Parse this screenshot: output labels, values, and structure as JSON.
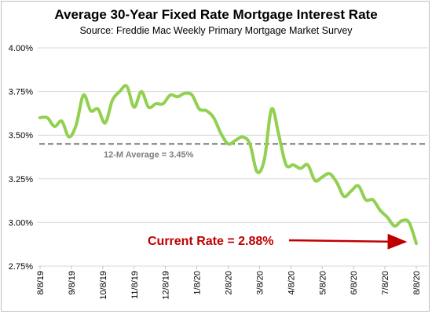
{
  "chart_data": {
    "type": "line",
    "title": "Average 30-Year Fixed Rate Mortgage Interest Rate",
    "subtitle": "Source: Freddie Mac Weekly Primary Mortgage Market Survey",
    "xlabel": "",
    "ylabel": "",
    "ylim": [
      2.75,
      4.0
    ],
    "y_ticks": [
      "2.75%",
      "3.00%",
      "3.25%",
      "3.50%",
      "3.75%",
      "4.00%"
    ],
    "y_tick_values": [
      2.75,
      3.0,
      3.25,
      3.5,
      3.75,
      4.0
    ],
    "x_ticks": [
      "8/8/19",
      "9/8/19",
      "10/8/19",
      "11/8/19",
      "12/8/19",
      "1/8/20",
      "2/8/20",
      "3/8/20",
      "4/8/20",
      "5/8/20",
      "6/8/20",
      "7/8/20",
      "8/8/20"
    ],
    "grid": "horizontal",
    "series": [
      {
        "name": "",
        "color": "#92d050",
        "values": [
          3.6,
          3.6,
          3.55,
          3.58,
          3.49,
          3.56,
          3.73,
          3.64,
          3.65,
          3.57,
          3.7,
          3.75,
          3.78,
          3.66,
          3.75,
          3.66,
          3.68,
          3.68,
          3.73,
          3.72,
          3.74,
          3.73,
          3.65,
          3.64,
          3.6,
          3.51,
          3.45,
          3.47,
          3.49,
          3.45,
          3.29,
          3.36,
          3.65,
          3.5,
          3.33,
          3.33,
          3.31,
          3.33,
          3.24,
          3.26,
          3.28,
          3.23,
          3.15,
          3.18,
          3.21,
          3.13,
          3.13,
          3.07,
          3.03,
          2.98,
          3.01,
          3.0,
          2.88
        ]
      }
    ],
    "reference_line": {
      "value": 3.45,
      "label": "12-M Average = 3.45%",
      "color": "#7f7f7f"
    },
    "annotation": {
      "text": "Current Rate = 2.88%",
      "color": "#c00000"
    }
  }
}
